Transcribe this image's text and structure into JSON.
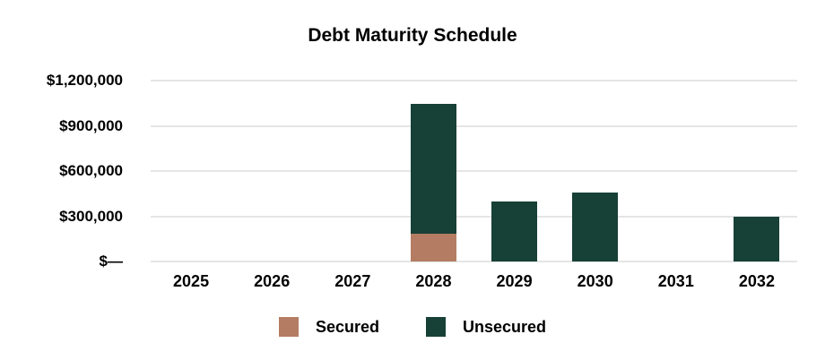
{
  "chart_data": {
    "type": "bar",
    "stacked": true,
    "title": "Debt Maturity Schedule",
    "xlabel": "",
    "ylabel": "",
    "categories": [
      "2025",
      "2026",
      "2027",
      "2028",
      "2029",
      "2030",
      "2031",
      "2032"
    ],
    "series": [
      {
        "name": "Secured",
        "color": "#b47d63",
        "values": [
          0,
          0,
          0,
          185000,
          0,
          0,
          0,
          0
        ]
      },
      {
        "name": "Unsecured",
        "color": "#174037",
        "values": [
          0,
          0,
          0,
          860000,
          400000,
          460000,
          0,
          295000
        ]
      }
    ],
    "ylim": [
      0,
      1200000
    ],
    "y_ticks": [
      {
        "value": 0,
        "label": "$—"
      },
      {
        "value": 300000,
        "label": "$300,000"
      },
      {
        "value": 600000,
        "label": "$600,000"
      },
      {
        "value": 900000,
        "label": "$900,000"
      },
      {
        "value": 1200000,
        "label": "$1,200,000"
      }
    ],
    "grid": true,
    "gridline_color": "#e5e5e5",
    "legend_position": "bottom",
    "legend": [
      "Secured",
      "Unsecured"
    ],
    "text_color": "#000000",
    "background_color": "#ffffff"
  }
}
